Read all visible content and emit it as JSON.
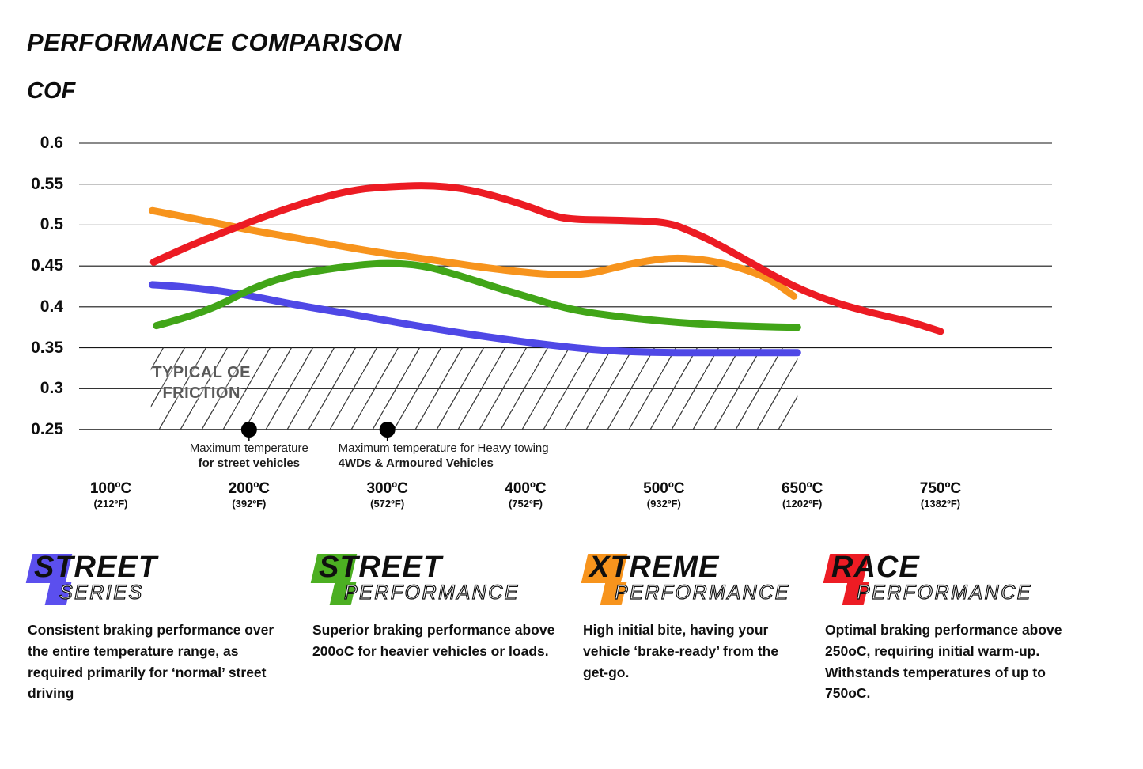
{
  "title": "PERFORMANCE COMPARISON",
  "ylabel": "COF",
  "chart_data": {
    "type": "line",
    "title": "PERFORMANCE COMPARISON",
    "ylabel": "COF",
    "ylim": [
      0.25,
      0.6
    ],
    "grid": true,
    "y_ticks": [
      {
        "label": "0.6",
        "value": 0.6
      },
      {
        "label": "0.55",
        "value": 0.55
      },
      {
        "label": "0.5",
        "value": 0.5
      },
      {
        "label": "0.45",
        "value": 0.45
      },
      {
        "label": "0.4",
        "value": 0.4
      },
      {
        "label": "0.35",
        "value": 0.35
      },
      {
        "label": "0.3",
        "value": 0.3
      },
      {
        "label": "0.25",
        "value": 0.25
      }
    ],
    "x_ticks": [
      {
        "temp": 100,
        "label_c": "100ºC",
        "label_f": "(212ºF)"
      },
      {
        "temp": 200,
        "label_c": "200ºC",
        "label_f": "(392ºF)"
      },
      {
        "temp": 300,
        "label_c": "300ºC",
        "label_f": "(572ºF)"
      },
      {
        "temp": 400,
        "label_c": "400ºC",
        "label_f": "(752ºF)"
      },
      {
        "temp": 500,
        "label_c": "500ºC",
        "label_f": "(932ºF)"
      },
      {
        "temp": 650,
        "label_c": "650ºC",
        "label_f": "(1202ºF)"
      },
      {
        "temp": 750,
        "label_c": "750ºC",
        "label_f": "(1382ºF)"
      }
    ],
    "series": [
      {
        "name": "Street Series",
        "color": "#4F48E6",
        "points": [
          [
            130,
            0.427
          ],
          [
            160,
            0.424
          ],
          [
            200,
            0.414
          ],
          [
            226,
            0.405
          ],
          [
            249,
            0.398
          ],
          [
            278,
            0.39
          ],
          [
            300,
            0.383
          ],
          [
            342,
            0.371
          ],
          [
            377,
            0.362
          ],
          [
            423,
            0.352
          ],
          [
            461,
            0.346
          ],
          [
            501,
            0.344
          ],
          [
            555,
            0.344
          ],
          [
            600,
            0.344
          ],
          [
            645,
            0.344
          ]
        ]
      },
      {
        "name": "Street Performance",
        "color": "#41A518",
        "points": [
          [
            133,
            0.377
          ],
          [
            157,
            0.388
          ],
          [
            180,
            0.403
          ],
          [
            200,
            0.421
          ],
          [
            226,
            0.437
          ],
          [
            249,
            0.444
          ],
          [
            278,
            0.451
          ],
          [
            300,
            0.4535
          ],
          [
            325,
            0.451
          ],
          [
            351,
            0.439
          ],
          [
            377,
            0.4245
          ],
          [
            400,
            0.413
          ],
          [
            429,
            0.398
          ],
          [
            457,
            0.39
          ],
          [
            501,
            0.382
          ],
          [
            555,
            0.378
          ],
          [
            600,
            0.376
          ],
          [
            645,
            0.375
          ]
        ]
      },
      {
        "name": "Xtreme Performance",
        "color": "#F7941D",
        "points": [
          [
            130,
            0.5176
          ],
          [
            169,
            0.505
          ],
          [
            200,
            0.494
          ],
          [
            238,
            0.483
          ],
          [
            277,
            0.471
          ],
          [
            300,
            0.465
          ],
          [
            336,
            0.4565
          ],
          [
            365,
            0.449
          ],
          [
            400,
            0.442
          ],
          [
            423,
            0.439
          ],
          [
            446,
            0.44
          ],
          [
            469,
            0.45
          ],
          [
            489,
            0.4565
          ],
          [
            509,
            0.46
          ],
          [
            538,
            0.4585
          ],
          [
            568,
            0.4525
          ],
          [
            598,
            0.442
          ],
          [
            619,
            0.431
          ],
          [
            641,
            0.413
          ]
        ]
      },
      {
        "name": "Race Performance",
        "color": "#EC1B23",
        "points": [
          [
            131,
            0.4546
          ],
          [
            157,
            0.475
          ],
          [
            186,
            0.494
          ],
          [
            215,
            0.513
          ],
          [
            249,
            0.532
          ],
          [
            278,
            0.544
          ],
          [
            308,
            0.5475
          ],
          [
            331,
            0.5485
          ],
          [
            354,
            0.545
          ],
          [
            377,
            0.536
          ],
          [
            400,
            0.524
          ],
          [
            417,
            0.513
          ],
          [
            431,
            0.507
          ],
          [
            463,
            0.506
          ],
          [
            503,
            0.504
          ],
          [
            530,
            0.492
          ],
          [
            555,
            0.479
          ],
          [
            590,
            0.4565
          ],
          [
            624,
            0.435
          ],
          [
            649,
            0.421
          ],
          [
            672,
            0.406
          ],
          [
            700,
            0.3926
          ],
          [
            728,
            0.382
          ],
          [
            750,
            0.37
          ]
        ]
      }
    ],
    "oe_band": {
      "label_line1": "TYPICAL OE",
      "label_line2": "FRICTION",
      "cof_min": 0.25,
      "cof_max": 0.35,
      "t_start": 129,
      "t_end": 645
    },
    "annotations": [
      {
        "temp": 200,
        "align": "center",
        "line1": "Maximum temperature",
        "line2": "for street vehicles"
      },
      {
        "temp": 300,
        "align": "left",
        "line1": "Maximum temperature for Heavy towing",
        "line2": "4WDs & Armoured Vehicles"
      }
    ]
  },
  "legend": [
    {
      "word1": "STREET",
      "word2": "SERIES",
      "color": "#5B4FEE",
      "description": "Consistent braking performance over the entire temperature range, as required primarily for ‘normal’ street driving"
    },
    {
      "word1": "STREET",
      "word2": "PERFORMANCE",
      "color": "#4CAF22",
      "description": "Superior braking performance above 200oC for heavier vehicles or loads."
    },
    {
      "word1": "XTREME",
      "word2": "PERFORMANCE",
      "color": "#F7941D",
      "description": "High initial bite, having your vehicle ‘brake-ready’ from the get-go."
    },
    {
      "word1": "RACE",
      "word2": "PERFORMANCE",
      "color": "#ED1C24",
      "description": "Optimal braking performance above 250oC, requiring initial warm-up. Withstands temperatures of up to 750oC."
    }
  ]
}
